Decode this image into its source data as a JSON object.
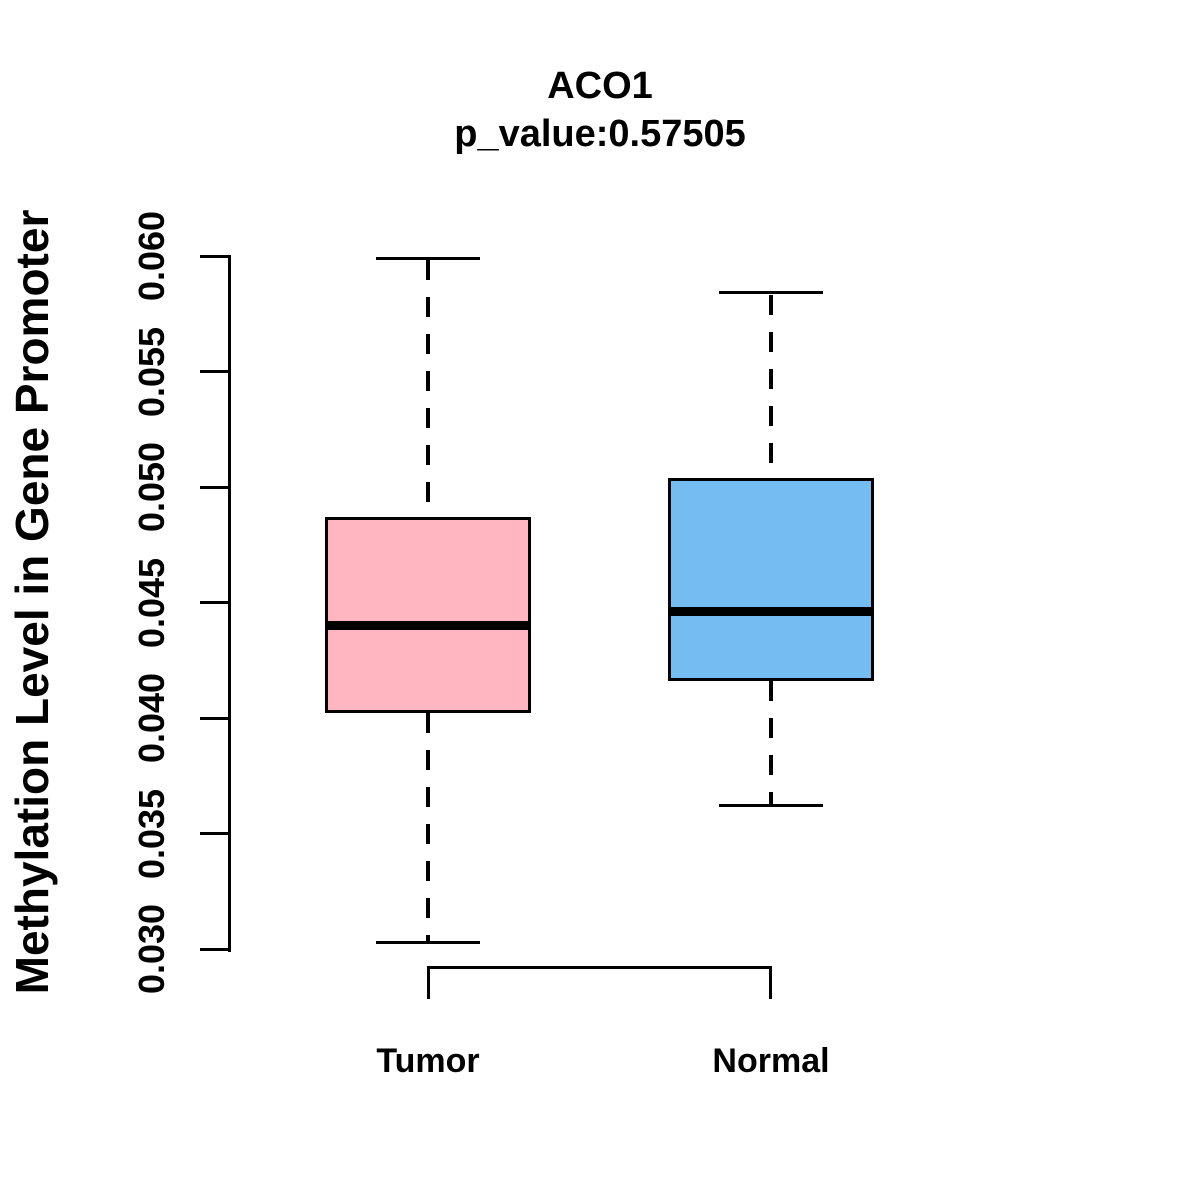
{
  "chart_data": {
    "type": "boxplot",
    "title": "ACO1",
    "subtitle": "p_value:0.57505",
    "ylabel": "Methylation Level in Gene Promoter",
    "xlabel": "",
    "ylim": [
      0.03,
      0.06
    ],
    "yticks": [
      0.03,
      0.035,
      0.04,
      0.045,
      0.05,
      0.055,
      0.06
    ],
    "ytick_label_format_decimals": 3,
    "grid": false,
    "legend": "none",
    "groups": [
      {
        "label": "Tumor",
        "fill_color": "#FFB6C1",
        "border_color": "#000000",
        "lower_whisker": 0.0303,
        "q1": 0.0402,
        "median": 0.044,
        "q3": 0.0487,
        "upper_whisker": 0.0599
      },
      {
        "label": "Normal",
        "fill_color": "#74BDF2",
        "border_color": "#000000",
        "lower_whisker": 0.0362,
        "q1": 0.0416,
        "median": 0.0446,
        "q3": 0.0504,
        "upper_whisker": 0.0584
      }
    ],
    "comparison_bracket": {
      "between": [
        "Tumor",
        "Normal"
      ],
      "annotation": ""
    }
  }
}
